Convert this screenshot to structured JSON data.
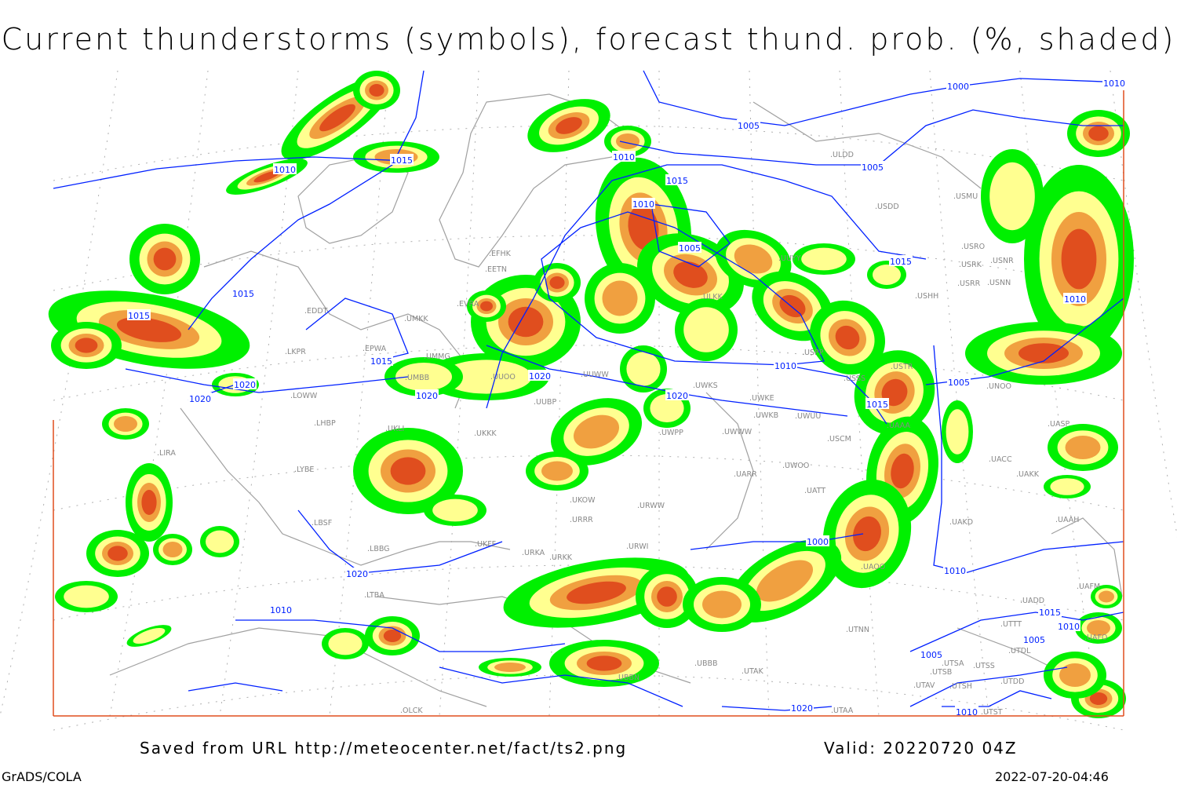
{
  "title": "Current thunderstorms (symbols), forecast thund. prob. (%, shaded)",
  "footer": {
    "source": "Saved from URL http://meteocenter.net/fact/ts2.png",
    "valid": "Valid: 20220720 04Z",
    "software": "GrADS/COLA",
    "timestamp": "2022-07-20-04:46"
  },
  "colors": {
    "prob_low": "#00f000",
    "prob_mid": "#ffff90",
    "prob_high": "#f0a040",
    "prob_max": "#e04e1e",
    "isobars": "#0020ff",
    "coastlines": "#a0a0a0",
    "map_border": "#e04e1e"
  },
  "isobar_labels": [
    "1010",
    "1015",
    "1015",
    "1015",
    "1015",
    "1020",
    "1020",
    "1020",
    "1020",
    "1020",
    "1010",
    "1005",
    "1000",
    "1010",
    "1005",
    "1010",
    "1015",
    "1010",
    "1005",
    "1015",
    "1010",
    "1020",
    "1015",
    "1005",
    "1010",
    "1000",
    "1010",
    "1005",
    "1015",
    "1010",
    "1005",
    "1020",
    "1010"
  ],
  "stations": [
    "ULDD",
    "USDD",
    "USMU",
    "USRO",
    "USRK",
    "USNR",
    "USRR",
    "USNN",
    "USHH",
    "ULKK",
    "UUYY",
    "EFHK",
    "EETN",
    "EVRA",
    "UMKK",
    "EDDT",
    "UMMG",
    "UUWW",
    "UMBB",
    "UUOO",
    "UWKS",
    "UWKE",
    "UWKB",
    "UWUU",
    "USCM",
    "UWOO",
    "UARR",
    "UUBP",
    "UKKK",
    "UKLI",
    "EPWA",
    "LKPR",
    "LOWW",
    "LHBP",
    "LIRA",
    "LYBE",
    "LBSF",
    "LBBG",
    "LTBA",
    "UKFF",
    "URKA",
    "URKK",
    "URWI",
    "URRR",
    "UKOW",
    "URWW",
    "UWPP",
    "UWWW",
    "USPP",
    "USSS",
    "USTR",
    "UAAA",
    "UACC",
    "UAKK",
    "UAKD",
    "UATT",
    "UAOO",
    "UASP",
    "UNOO",
    "UAAH",
    "UAFM",
    "UADD",
    "UTTT",
    "UAFO",
    "UTDL",
    "UTSA",
    "UTSS",
    "UTSB",
    "UTAV",
    "UTSH",
    "UTDD",
    "UTST",
    "UTNN",
    "UTAA",
    "UBBB",
    "UTAK",
    "UBBN",
    "OLCK"
  ]
}
